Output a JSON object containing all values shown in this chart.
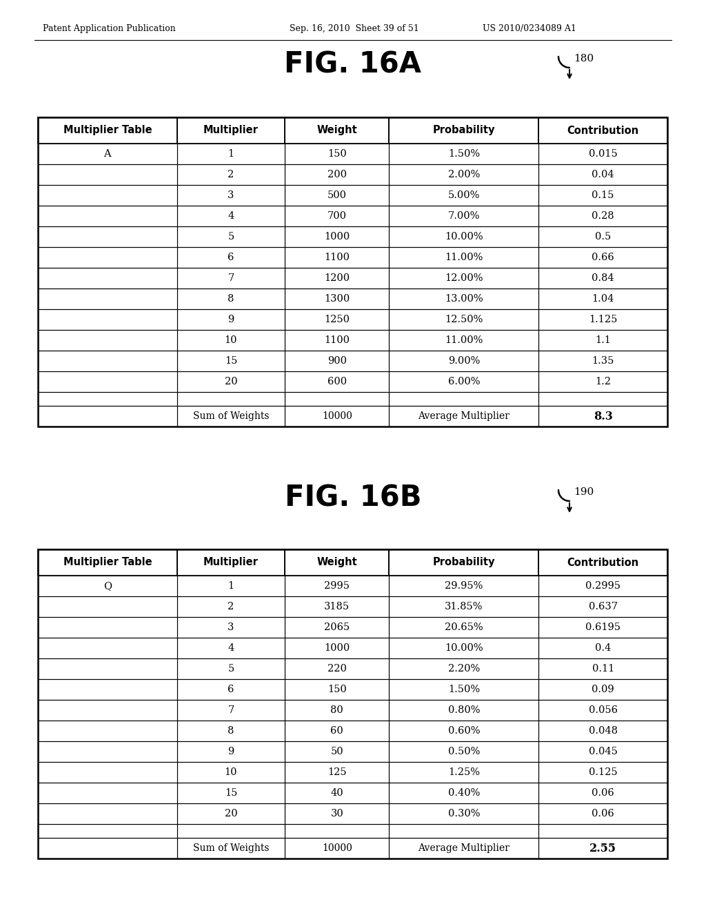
{
  "header_text_left": "Patent Application Publication",
  "header_text_mid": "Sep. 16, 2010  Sheet 39 of 51",
  "header_text_right": "US 2010/0234089 A1",
  "fig_a_title": "FIG. 16A",
  "fig_b_title": "FIG. 16B",
  "ref_a": "180",
  "ref_b": "190",
  "table_a_label": "A",
  "table_b_label": "Q",
  "headers": [
    "Multiplier Table",
    "Multiplier",
    "Weight",
    "Probability",
    "Contribution"
  ],
  "rows_a": [
    [
      "A",
      "1",
      "150",
      "1.50%",
      "0.015"
    ],
    [
      "",
      "2",
      "200",
      "2.00%",
      "0.04"
    ],
    [
      "",
      "3",
      "500",
      "5.00%",
      "0.15"
    ],
    [
      "",
      "4",
      "700",
      "7.00%",
      "0.28"
    ],
    [
      "",
      "5",
      "1000",
      "10.00%",
      "0.5"
    ],
    [
      "",
      "6",
      "1100",
      "11.00%",
      "0.66"
    ],
    [
      "",
      "7",
      "1200",
      "12.00%",
      "0.84"
    ],
    [
      "",
      "8",
      "1300",
      "13.00%",
      "1.04"
    ],
    [
      "",
      "9",
      "1250",
      "12.50%",
      "1.125"
    ],
    [
      "",
      "10",
      "1100",
      "11.00%",
      "1.1"
    ],
    [
      "",
      "15",
      "900",
      "9.00%",
      "1.35"
    ],
    [
      "",
      "20",
      "600",
      "6.00%",
      "1.2"
    ]
  ],
  "summary_a": [
    "",
    "Sum of Weights",
    "10000",
    "Average Multiplier",
    "8.3"
  ],
  "rows_b": [
    [
      "Q",
      "1",
      "2995",
      "29.95%",
      "0.2995"
    ],
    [
      "",
      "2",
      "3185",
      "31.85%",
      "0.637"
    ],
    [
      "",
      "3",
      "2065",
      "20.65%",
      "0.6195"
    ],
    [
      "",
      "4",
      "1000",
      "10.00%",
      "0.4"
    ],
    [
      "",
      "5",
      "220",
      "2.20%",
      "0.11"
    ],
    [
      "",
      "6",
      "150",
      "1.50%",
      "0.09"
    ],
    [
      "",
      "7",
      "80",
      "0.80%",
      "0.056"
    ],
    [
      "",
      "8",
      "60",
      "0.60%",
      "0.048"
    ],
    [
      "",
      "9",
      "50",
      "0.50%",
      "0.045"
    ],
    [
      "",
      "10",
      "125",
      "1.25%",
      "0.125"
    ],
    [
      "",
      "15",
      "40",
      "0.40%",
      "0.06"
    ],
    [
      "",
      "20",
      "30",
      "0.30%",
      "0.06"
    ]
  ],
  "summary_b": [
    "",
    "Sum of Weights",
    "10000",
    "Average Multiplier",
    "2.55"
  ],
  "background_color": "#ffffff",
  "text_color": "#000000"
}
